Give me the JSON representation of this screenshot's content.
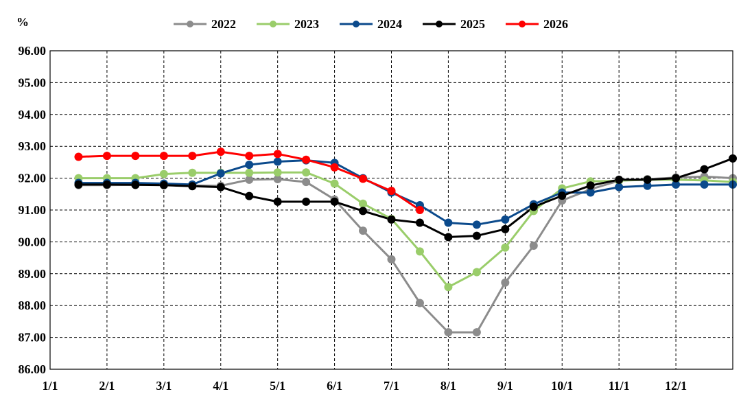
{
  "chart_data": {
    "type": "line",
    "unit_label": "%",
    "ylim": [
      86,
      96
    ],
    "y_ticks": [
      "96.00",
      "95.00",
      "94.00",
      "93.00",
      "92.00",
      "91.00",
      "90.00",
      "89.00",
      "88.00",
      "87.00",
      "86.00"
    ],
    "x_tick_labels": [
      "1/1",
      "2/1",
      "3/1",
      "4/1",
      "5/1",
      "6/1",
      "7/1",
      "8/1",
      "9/1",
      "10/1",
      "11/1",
      "12/1"
    ],
    "grid": true,
    "legend_position": "top",
    "series": [
      {
        "name": "2022",
        "color": "#8c8c8c",
        "values": [
          91.78,
          91.78,
          91.79,
          91.8,
          91.77,
          91.76,
          91.95,
          91.97,
          91.88,
          91.33,
          90.35,
          89.45,
          88.08,
          87.16,
          87.16,
          88.72,
          89.88,
          91.3,
          91.65,
          91.92,
          91.97,
          92.02,
          92.05,
          92.0
        ]
      },
      {
        "name": "2023",
        "color": "#9acd6a",
        "values": [
          92.0,
          92.0,
          92.0,
          92.13,
          92.17,
          92.17,
          92.17,
          92.18,
          92.18,
          91.83,
          91.2,
          90.72,
          89.7,
          88.58,
          89.05,
          89.82,
          90.97,
          91.68,
          91.9,
          91.92,
          91.95,
          91.95,
          91.93,
          91.88
        ]
      },
      {
        "name": "2024",
        "color": "#0b4a8c",
        "values": [
          91.85,
          91.85,
          91.85,
          91.83,
          91.8,
          92.15,
          92.42,
          92.52,
          92.56,
          92.48,
          92.0,
          91.55,
          91.15,
          90.6,
          90.54,
          90.7,
          91.18,
          91.55,
          91.55,
          91.72,
          91.76,
          91.8,
          91.8,
          91.8
        ]
      },
      {
        "name": "2025",
        "color": "#000000",
        "values": [
          91.8,
          91.8,
          91.79,
          91.78,
          91.75,
          91.72,
          91.44,
          91.26,
          91.26,
          91.26,
          90.97,
          90.7,
          90.6,
          90.15,
          90.19,
          90.4,
          91.1,
          91.45,
          91.77,
          91.95,
          91.95,
          92.0,
          92.28,
          92.62
        ]
      },
      {
        "name": "2026",
        "color": "#ff0000",
        "values": [
          92.67,
          92.7,
          92.7,
          92.7,
          92.7,
          92.83,
          92.7,
          92.76,
          92.58,
          92.34,
          91.98,
          91.6,
          91.0
        ]
      }
    ]
  }
}
